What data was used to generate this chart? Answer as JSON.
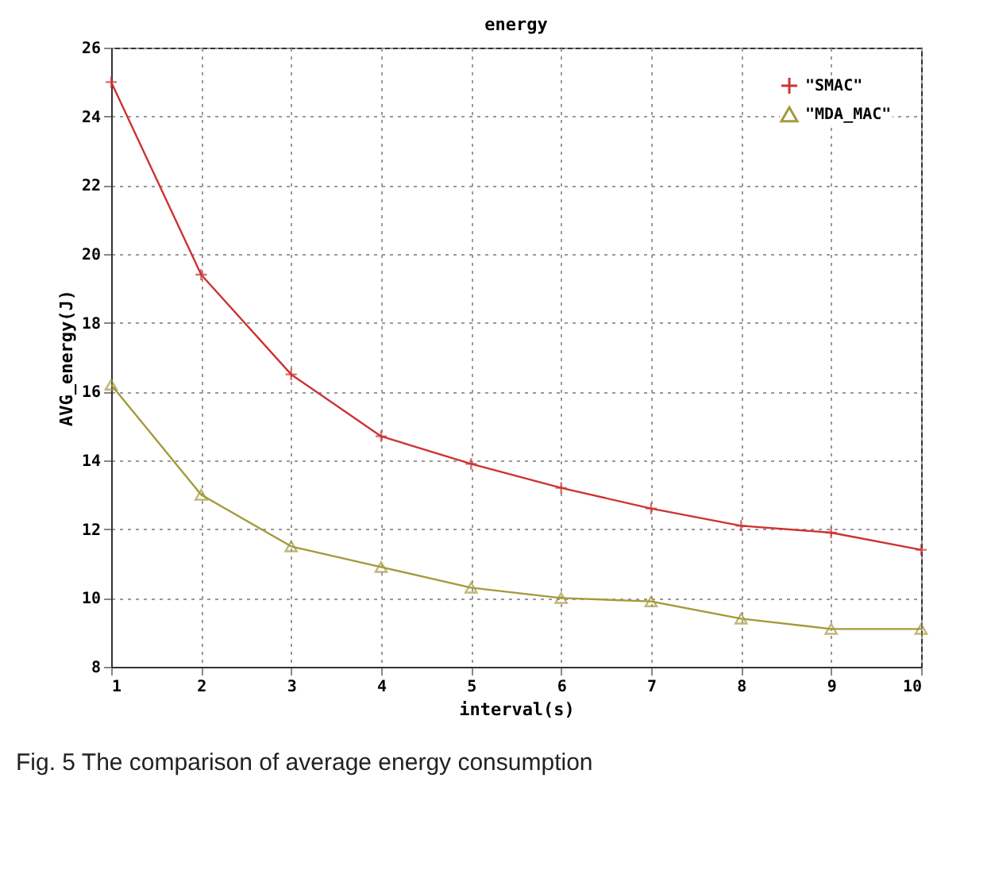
{
  "chart_data": {
    "type": "line",
    "title": "energy",
    "xlabel": "interval(s)",
    "ylabel": "AVG_energy(J)",
    "x": [
      1,
      2,
      3,
      4,
      5,
      6,
      7,
      8,
      9,
      10
    ],
    "series": [
      {
        "name": "\"SMAC\"",
        "color": "#cc3333",
        "marker": "cross",
        "values": [
          25,
          19.4,
          16.5,
          14.7,
          13.9,
          13.2,
          12.6,
          12.1,
          11.9,
          11.4
        ]
      },
      {
        "name": "\"MDA_MAC\"",
        "color": "#a39a3c",
        "marker": "triangle",
        "values": [
          16.2,
          13.0,
          11.5,
          10.9,
          10.3,
          10.0,
          9.9,
          9.4,
          9.1,
          9.1
        ]
      }
    ],
    "xlim": [
      1,
      10
    ],
    "xticks": [
      1,
      2,
      3,
      4,
      5,
      6,
      7,
      8,
      9,
      10
    ],
    "ylim": [
      8,
      26
    ],
    "yticks": [
      8,
      10,
      12,
      14,
      16,
      18,
      20,
      22,
      24,
      26
    ],
    "grid": true,
    "legend": "top right",
    "line_style": "solid",
    "annotations": [
      "Fig. 5 The comparison of average energy consumption"
    ]
  }
}
